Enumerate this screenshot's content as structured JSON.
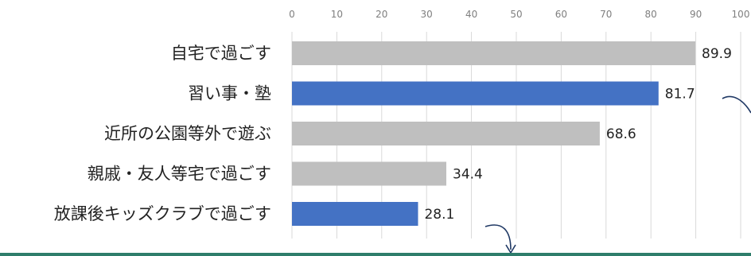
{
  "chart_data": {
    "type": "bar",
    "orientation": "horizontal",
    "categories": [
      "自宅で過ごす",
      "習い事・塾",
      "近所の公園等外で遊ぶ",
      "親戚・友人等宅で過ごす",
      "放課後キッズクラブで過ごす"
    ],
    "values": [
      89.9,
      81.7,
      68.6,
      34.4,
      28.1
    ],
    "highlighted": [
      false,
      true,
      false,
      false,
      true
    ],
    "colors": {
      "default": "#bfbfbf",
      "highlight": "#4472c4",
      "accent_border": "#2e7d6b",
      "arrow": "#1f3864"
    },
    "xlim": [
      0,
      100
    ],
    "xticks": [
      0,
      10,
      20,
      30,
      40,
      50,
      60,
      70,
      80,
      90,
      100
    ],
    "grid": true,
    "title": "",
    "xlabel": "",
    "ylabel": ""
  }
}
